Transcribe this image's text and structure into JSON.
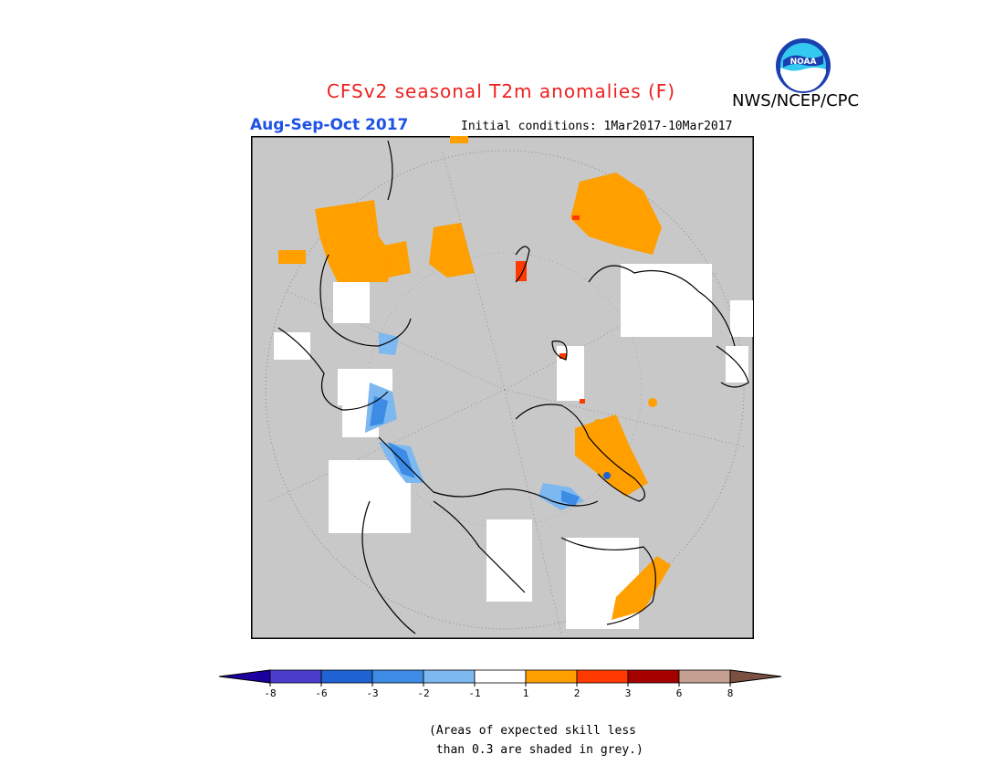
{
  "title": "CFSv2 seasonal T2m anomalies (F)",
  "org": "NWS/NCEP/CPC",
  "logo_text": "NOAA",
  "period": "Aug-Sep-Oct 2017",
  "initial_conditions": "Initial conditions: 1Mar2017-10Mar2017",
  "colors": {
    "title": "#ee2020",
    "period": "#1e52e6",
    "land_grey": "#c8c8c8",
    "white_bin": "#ffffff",
    "warm1": "#ff9f00",
    "warm2": "#ff3a00",
    "cool1": "#7db8f0",
    "cool2": "#3c8ce6"
  },
  "colorbar": {
    "tick_labels": [
      "-8",
      "-6",
      "-3",
      "-2",
      "-1",
      "1",
      "2",
      "3",
      "6",
      "8"
    ],
    "colors": [
      "#1d00a0",
      "#4b3ccc",
      "#1e62d4",
      "#3c8ce6",
      "#7db8f0",
      "#ffffff",
      "#ff9f00",
      "#ff3a00",
      "#a50000",
      "#c4a090",
      "#7a5040"
    ]
  },
  "note": "(Areas of expected skill less\n than 0.3 are shaded in grey.)"
}
